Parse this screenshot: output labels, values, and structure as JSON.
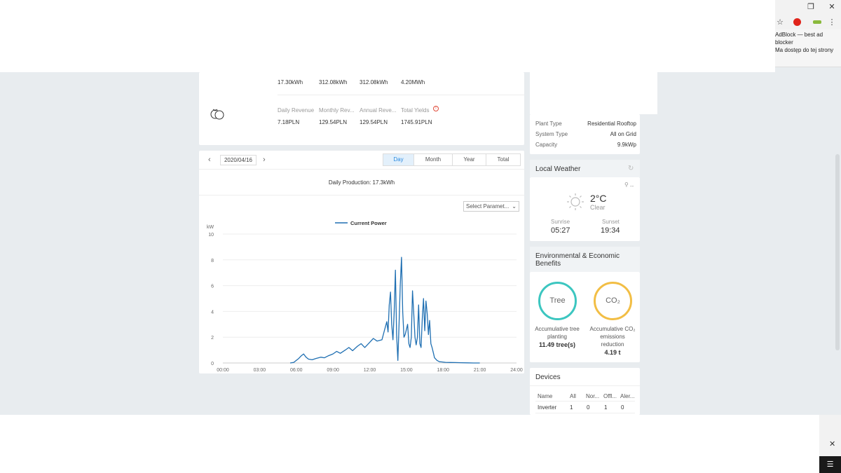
{
  "browser": {
    "star_icon": "star-icon",
    "extension_popup": {
      "line1": "AdBlock — best ad blocker",
      "line2": "Ma dostęp do tej strony"
    },
    "window_close": "✕"
  },
  "stats": {
    "production": {
      "values": [
        "17.30kWh",
        "312.08kWh",
        "312.08kWh",
        "4.20MWh"
      ]
    },
    "revenue": {
      "labels": [
        "Daily Revenue",
        "Monthly Rev...",
        "Annual Reve...",
        "Total Yields"
      ],
      "values": [
        "7.18PLN",
        "129.54PLN",
        "129.54PLN",
        "1745.91PLN"
      ]
    }
  },
  "chart_toolbar": {
    "date": "2020/04/16",
    "tabs": [
      "Day",
      "Month",
      "Year",
      "Total"
    ],
    "active_tab": "Day",
    "daily_production": "Daily Production: 17.3kWh",
    "select_param": "Select Paramet..."
  },
  "chart_data": {
    "type": "line",
    "ylabel": "kW",
    "ylim": [
      0,
      10
    ],
    "yticks": [
      "0",
      "2",
      "4",
      "6",
      "8",
      "10"
    ],
    "xticks": [
      "00:00",
      "03:00",
      "06:00",
      "09:00",
      "12:00",
      "15:00",
      "18:00",
      "21:00",
      "24:00"
    ],
    "series": [
      {
        "name": "Current Power",
        "x": [
          5.5,
          5.8,
          6.0,
          6.2,
          6.4,
          6.6,
          6.8,
          7.0,
          7.3,
          7.6,
          8.0,
          8.3,
          8.6,
          9.0,
          9.3,
          9.6,
          10.0,
          10.3,
          10.6,
          11.0,
          11.3,
          11.6,
          12.0,
          12.3,
          12.6,
          13.0,
          13.2,
          13.4,
          13.5,
          13.6,
          13.7,
          13.8,
          13.9,
          14.0,
          14.1,
          14.2,
          14.3,
          14.4,
          14.5,
          14.6,
          14.7,
          14.8,
          14.9,
          15.0,
          15.1,
          15.2,
          15.3,
          15.4,
          15.5,
          15.6,
          15.7,
          15.8,
          15.9,
          16.0,
          16.1,
          16.2,
          16.3,
          16.4,
          16.5,
          16.6,
          16.7,
          16.8,
          16.9,
          17.0,
          17.1,
          17.2,
          17.3,
          17.5,
          17.7,
          17.9,
          18.2,
          18.6,
          19.0,
          19.5,
          20.0,
          20.5,
          21.0
        ],
        "values": [
          0,
          0.05,
          0.2,
          0.35,
          0.55,
          0.7,
          0.45,
          0.3,
          0.25,
          0.35,
          0.45,
          0.4,
          0.55,
          0.7,
          0.9,
          0.75,
          1.0,
          1.2,
          0.95,
          1.3,
          1.5,
          1.2,
          1.6,
          1.9,
          1.7,
          1.8,
          2.5,
          3.2,
          2.4,
          4.5,
          5.5,
          3.0,
          1.8,
          3.9,
          7.2,
          2.2,
          0.2,
          3.0,
          6.0,
          8.2,
          4.0,
          2.0,
          2.2,
          2.6,
          3.0,
          1.5,
          1.2,
          2.0,
          5.6,
          3.8,
          2.0,
          1.4,
          2.0,
          4.5,
          1.5,
          1.2,
          3.5,
          5.0,
          2.5,
          4.8,
          3.8,
          2.2,
          3.3,
          1.5,
          1.2,
          0.8,
          0.4,
          0.2,
          0.1,
          0.08,
          0.05,
          0.04,
          0.03,
          0.02,
          0.01,
          0,
          0
        ]
      }
    ]
  },
  "plant_info": {
    "rows": [
      {
        "label": "Plant Type",
        "value": "Residential Rooftop"
      },
      {
        "label": "System Type",
        "value": "All on Grid"
      },
      {
        "label": "Capacity",
        "value": "9.9kWp"
      }
    ]
  },
  "weather": {
    "title": "Local Weather",
    "location": "--",
    "temperature": "2°C",
    "condition": "Clear",
    "sunrise_label": "Sunrise",
    "sunrise": "05:27",
    "sunset_label": "Sunset",
    "sunset": "19:34"
  },
  "benefits": {
    "title_line1": "Environmental & Economic",
    "title_line2": "Benefits",
    "tree": {
      "circle_label": "Tree",
      "label_line1": "Accumulative tree",
      "label_line2": "planting",
      "value": "11.49 tree(s)",
      "color": "#3cc6c0"
    },
    "co2": {
      "circle_label": "CO₂",
      "label_line1": "Accumulative CO₂",
      "label_line2": "emissions",
      "label_line3": "reduction",
      "value": "4.19 t",
      "color": "#f2be45"
    }
  },
  "devices": {
    "title": "Devices",
    "headers": [
      "Name",
      "All",
      "Nor...",
      "Offl...",
      "Aler..."
    ],
    "rows": [
      [
        "Inverter",
        "1",
        "0",
        "1",
        "0"
      ]
    ]
  },
  "colors": {
    "accent": "#2b8be0",
    "line": "#1f6fb2",
    "background": "#e8ecef"
  }
}
